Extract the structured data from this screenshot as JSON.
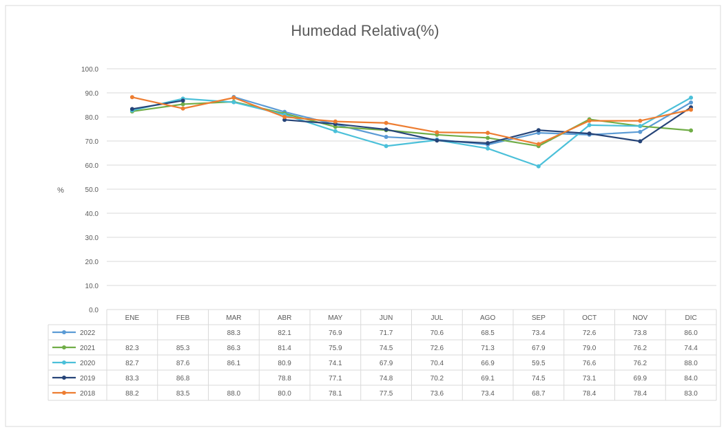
{
  "chart_data": {
    "type": "line",
    "title": "Humedad Relativa(%)",
    "ylabel": "%",
    "xlabel": "",
    "ylim": [
      0,
      100
    ],
    "ytick_labels": [
      "0.0",
      "10.0",
      "20.0",
      "30.0",
      "40.0",
      "50.0",
      "60.0",
      "70.0",
      "80.0",
      "90.0",
      "100.0"
    ],
    "categories": [
      "ENE",
      "FEB",
      "MAR",
      "ABR",
      "MAY",
      "JUN",
      "JUL",
      "AGO",
      "SEP",
      "OCT",
      "NOV",
      "DIC"
    ],
    "grid": true,
    "legend": "data-table",
    "series": [
      {
        "name": "2022",
        "color": "#5b9bd5",
        "values": [
          null,
          null,
          88.3,
          82.1,
          76.9,
          71.7,
          70.6,
          68.5,
          73.4,
          72.6,
          73.8,
          86.0
        ],
        "labels": [
          "",
          "",
          "88.3",
          "82.1",
          "76.9",
          "71.7",
          "70.6",
          "68.5",
          "73.4",
          "72.6",
          "73.8",
          "86.0"
        ]
      },
      {
        "name": "2021",
        "color": "#70ad47",
        "values": [
          82.3,
          85.3,
          86.3,
          81.4,
          75.9,
          74.5,
          72.6,
          71.3,
          67.9,
          79.0,
          76.2,
          74.4
        ],
        "labels": [
          "82.3",
          "85.3",
          "86.3",
          "81.4",
          "75.9",
          "74.5",
          "72.6",
          "71.3",
          "67.9",
          "79.0",
          "76.2",
          "74.4"
        ]
      },
      {
        "name": "2020",
        "color": "#4bc0d9",
        "values": [
          82.7,
          87.6,
          86.1,
          80.9,
          74.1,
          67.9,
          70.4,
          66.9,
          59.5,
          76.6,
          76.2,
          88.0
        ],
        "labels": [
          "82.7",
          "87.6",
          "86.1",
          "80.9",
          "74.1",
          "67.9",
          "70.4",
          "66.9",
          "59.5",
          "76.6",
          "76.2",
          "88.0"
        ]
      },
      {
        "name": "2019",
        "color": "#264478",
        "values": [
          83.3,
          86.8,
          null,
          78.8,
          77.1,
          74.8,
          70.2,
          69.1,
          74.5,
          73.1,
          69.9,
          84.0
        ],
        "labels": [
          "83.3",
          "86.8",
          "",
          "78.8",
          "77.1",
          "74.8",
          "70.2",
          "69.1",
          "74.5",
          "73.1",
          "69.9",
          "84.0"
        ]
      },
      {
        "name": "2018",
        "color": "#ed7d31",
        "values": [
          88.2,
          83.5,
          88.0,
          80.0,
          78.1,
          77.5,
          73.6,
          73.4,
          68.7,
          78.4,
          78.4,
          83.0
        ],
        "labels": [
          "88.2",
          "83.5",
          "88.0",
          "80.0",
          "78.1",
          "77.5",
          "73.6",
          "73.4",
          "68.7",
          "78.4",
          "78.4",
          "83.0"
        ]
      }
    ]
  }
}
